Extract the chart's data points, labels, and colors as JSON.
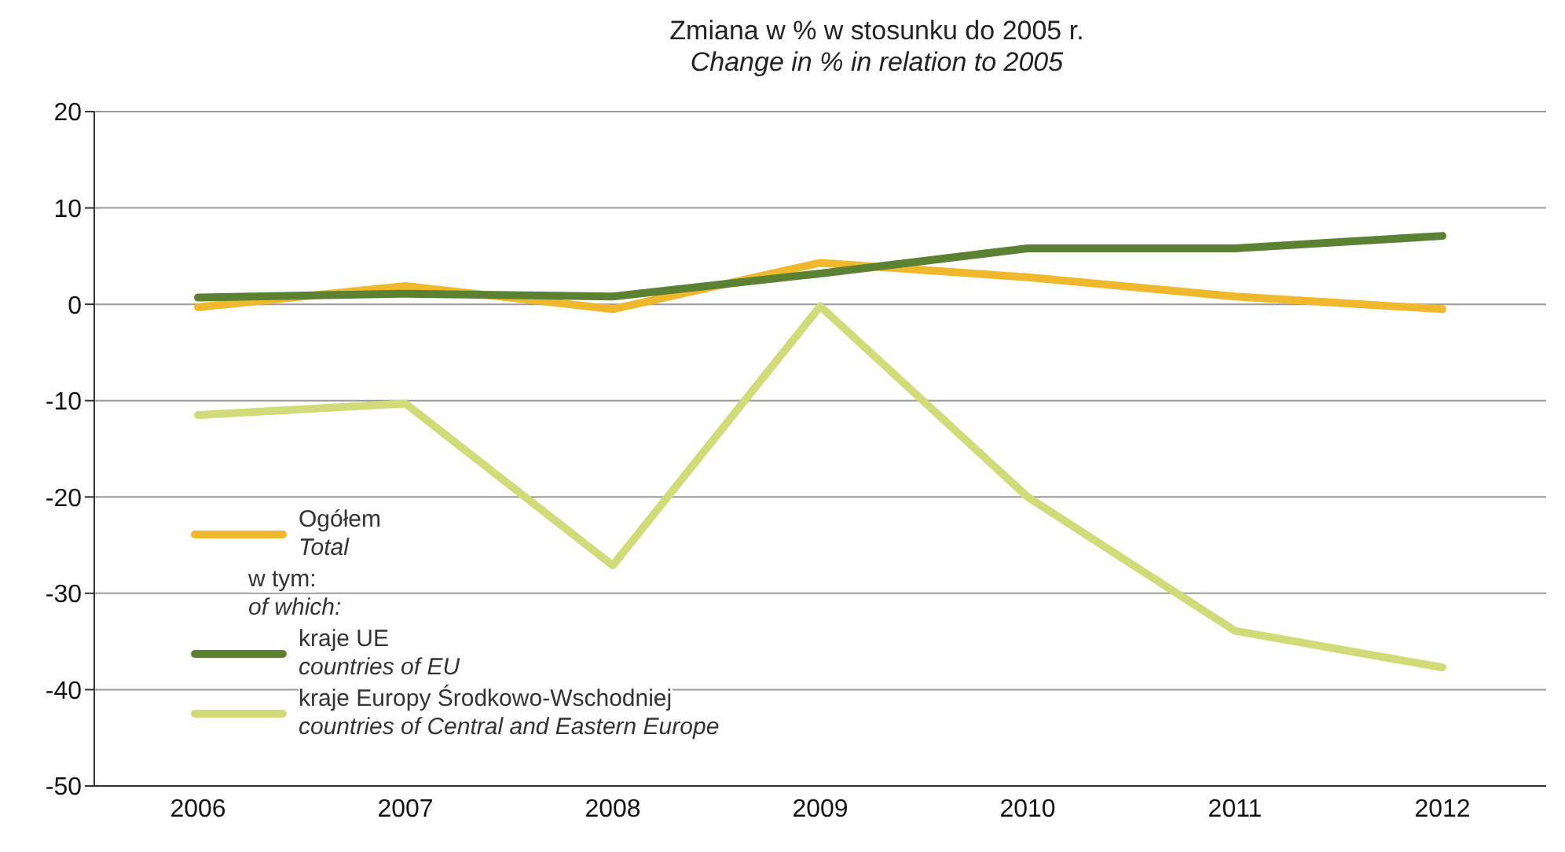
{
  "chart_data": {
    "type": "line",
    "title": "Zmiana w % w stosunku do 2005 r.",
    "subtitle": "Change in % in relation to 2005",
    "categories": [
      "2006",
      "2007",
      "2008",
      "2009",
      "2010",
      "2011",
      "2012"
    ],
    "series": [
      {
        "name": "Ogółem\nTotal",
        "color": "#f0b82d",
        "values": [
          -0.3,
          1.9,
          -0.5,
          4.3,
          2.8,
          0.8,
          -0.5
        ]
      },
      {
        "name": "kraje UE\ncountries of EU",
        "color": "#5a8232",
        "values": [
          0.7,
          1.1,
          0.8,
          3.2,
          5.8,
          5.8,
          7.1
        ]
      },
      {
        "name": "kraje Europy Środkowo-Wschodniej\ncountries of Central and Eastern Europe",
        "color": "#d1dc78",
        "values": [
          -11.5,
          -10.3,
          -27.1,
          -0.2,
          -20,
          -33.9,
          -37.7
        ]
      }
    ],
    "annotations": [
      "w tym:\nof which:"
    ],
    "ylim": [
      -50,
      20
    ],
    "yticks": [
      -50,
      -40,
      -30,
      -20,
      -10,
      0,
      10,
      20
    ],
    "grid": "y",
    "legend": "left",
    "marker": "none",
    "line_style": "solid"
  }
}
